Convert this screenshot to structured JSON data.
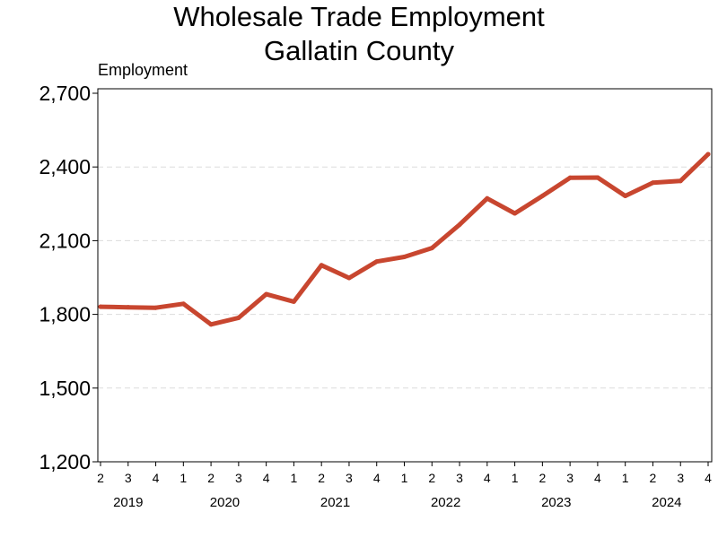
{
  "chart_data": {
    "type": "line",
    "title": "Wholesale Trade Employment",
    "subtitle": "Gallatin County",
    "ylabel": "Employment",
    "xlabel": "",
    "ylim": [
      1200,
      2700
    ],
    "yticks": [
      1200,
      1500,
      1800,
      2100,
      2400,
      2700
    ],
    "ytick_labels": [
      "1,200",
      "1,500",
      "1,800",
      "2,100",
      "2,400",
      "2,700"
    ],
    "grid": "horizontal dashed",
    "line_color": "#C8462F",
    "x": [
      "2019 Q2",
      "2019 Q3",
      "2019 Q4",
      "2020 Q1",
      "2020 Q2",
      "2020 Q3",
      "2020 Q4",
      "2021 Q1",
      "2021 Q2",
      "2021 Q3",
      "2021 Q4",
      "2022 Q1",
      "2022 Q2",
      "2022 Q3",
      "2022 Q4",
      "2023 Q1",
      "2023 Q2",
      "2023 Q3",
      "2023 Q4",
      "2024 Q1",
      "2024 Q2",
      "2024 Q3",
      "2024 Q4"
    ],
    "quarter_labels": [
      "2",
      "3",
      "4",
      "1",
      "2",
      "3",
      "4",
      "1",
      "2",
      "3",
      "4",
      "1",
      "2",
      "3",
      "4",
      "1",
      "2",
      "3",
      "4",
      "1",
      "2",
      "3",
      "4"
    ],
    "years": [
      {
        "label": "2019",
        "quarters": [
          0,
          2
        ]
      },
      {
        "label": "2020",
        "quarters": [
          3,
          6
        ]
      },
      {
        "label": "2021",
        "quarters": [
          7,
          10
        ]
      },
      {
        "label": "2022",
        "quarters": [
          11,
          14
        ]
      },
      {
        "label": "2023",
        "quarters": [
          15,
          18
        ]
      },
      {
        "label": "2024",
        "quarters": [
          19,
          22
        ]
      }
    ],
    "series": [
      {
        "values": [
          1831,
          1829,
          1827,
          1843,
          1759,
          1786,
          1882,
          1852,
          2000,
          1948,
          2015,
          2034,
          2070,
          2165,
          2272,
          2211,
          2282,
          2356,
          2357,
          2282,
          2336,
          2343,
          2452
        ]
      }
    ]
  }
}
